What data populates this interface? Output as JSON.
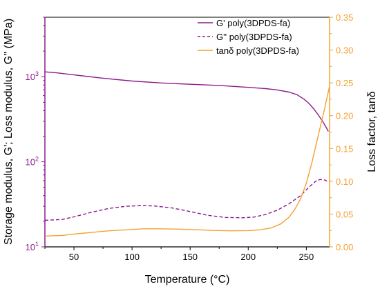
{
  "chart_data": {
    "type": "line",
    "xlabel": "Temperature (°C)",
    "ylabel_left": "Storage modulus, G'; Loss modulus, G'' (MPa)",
    "ylabel_right": "Loss factor, tanδ",
    "xlim": [
      25,
      270
    ],
    "ylim_left": [
      10,
      5000
    ],
    "y_left_scale": "log",
    "ylim_right": [
      0,
      0.35
    ],
    "x_ticks": [
      "50",
      "100",
      "150",
      "200",
      "250"
    ],
    "x_tick_values": [
      50,
      100,
      150,
      200,
      250
    ],
    "y_left_ticks": [
      {
        "value": 10,
        "base": "10",
        "exp": "1"
      },
      {
        "value": 100,
        "base": "10",
        "exp": "2"
      },
      {
        "value": 1000,
        "base": "10",
        "exp": "3"
      }
    ],
    "y_right_ticks": [
      "0.00",
      "0.05",
      "0.10",
      "0.15",
      "0.20",
      "0.25",
      "0.30",
      "0.35"
    ],
    "y_right_tick_values": [
      0.0,
      0.05,
      0.1,
      0.15,
      0.2,
      0.25,
      0.3,
      0.35
    ],
    "legend_position": "top-right",
    "grid": false,
    "series": [
      {
        "name": "G' poly(3DPDS-fa)",
        "axis": "left",
        "color": "#8B1A8B",
        "style": "solid",
        "x": [
          25,
          35,
          50,
          75,
          100,
          125,
          150,
          175,
          200,
          215,
          225,
          235,
          242,
          248,
          252,
          256,
          260,
          264,
          267,
          269
        ],
        "y": [
          1140,
          1110,
          1050,
          960,
          890,
          845,
          815,
          790,
          750,
          725,
          700,
          660,
          615,
          545,
          490,
          425,
          360,
          300,
          255,
          228
        ]
      },
      {
        "name": "G'' poly(3DPDS-fa)",
        "axis": "left",
        "color": "#8B1A8B",
        "style": "dashed",
        "x": [
          25,
          40,
          50,
          65,
          80,
          95,
          110,
          120,
          135,
          150,
          165,
          180,
          195,
          205,
          215,
          225,
          235,
          245,
          252,
          258,
          262,
          266,
          269
        ],
        "y": [
          20.5,
          21,
          22.5,
          25.5,
          28.3,
          30,
          30.6,
          30.2,
          28.6,
          26,
          23.5,
          22.2,
          22,
          22.4,
          24,
          27,
          32,
          40,
          50,
          59,
          62,
          61,
          58
        ]
      },
      {
        "name": "tanδ poly(3DPDS-fa)",
        "axis": "right",
        "color": "#F5A030",
        "style": "solid",
        "x": [
          25,
          40,
          50,
          65,
          80,
          95,
          110,
          125,
          140,
          155,
          170,
          185,
          200,
          210,
          220,
          228,
          235,
          240,
          245,
          250,
          255,
          260,
          265,
          270
        ],
        "y": [
          0.0165,
          0.0175,
          0.0195,
          0.022,
          0.0245,
          0.026,
          0.0275,
          0.0275,
          0.027,
          0.0262,
          0.025,
          0.0245,
          0.0248,
          0.026,
          0.029,
          0.035,
          0.045,
          0.057,
          0.073,
          0.097,
          0.13,
          0.168,
          0.205,
          0.245
        ]
      }
    ]
  }
}
